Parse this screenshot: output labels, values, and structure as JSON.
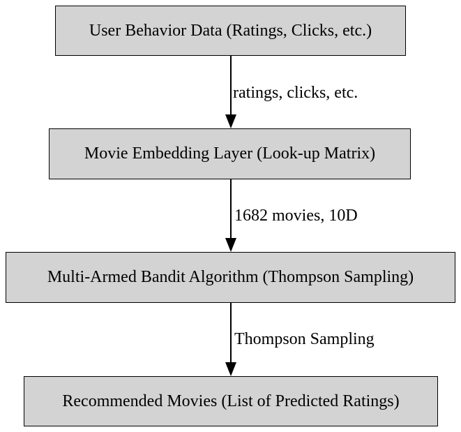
{
  "diagram": {
    "nodes": [
      {
        "id": "user-behavior-data",
        "label": "User Behavior Data (Ratings, Clicks, etc.)"
      },
      {
        "id": "movie-embedding-layer",
        "label": "Movie Embedding Layer (Look-up Matrix)"
      },
      {
        "id": "multi-armed-bandit",
        "label": "Multi-Armed Bandit Algorithm (Thompson Sampling)"
      },
      {
        "id": "recommended-movies",
        "label": "Recommended Movies (List of Predicted Ratings)"
      }
    ],
    "edges": [
      {
        "from": "user-behavior-data",
        "to": "movie-embedding-layer",
        "label": "ratings, clicks, etc."
      },
      {
        "from": "movie-embedding-layer",
        "to": "multi-armed-bandit",
        "label": "1682 movies, 10D"
      },
      {
        "from": "multi-armed-bandit",
        "to": "recommended-movies",
        "label": "Thompson Sampling"
      }
    ]
  },
  "colors": {
    "node_fill": "#d3d3d3",
    "node_border": "#000000",
    "edge": "#000000",
    "text": "#000000",
    "background": "#ffffff"
  }
}
